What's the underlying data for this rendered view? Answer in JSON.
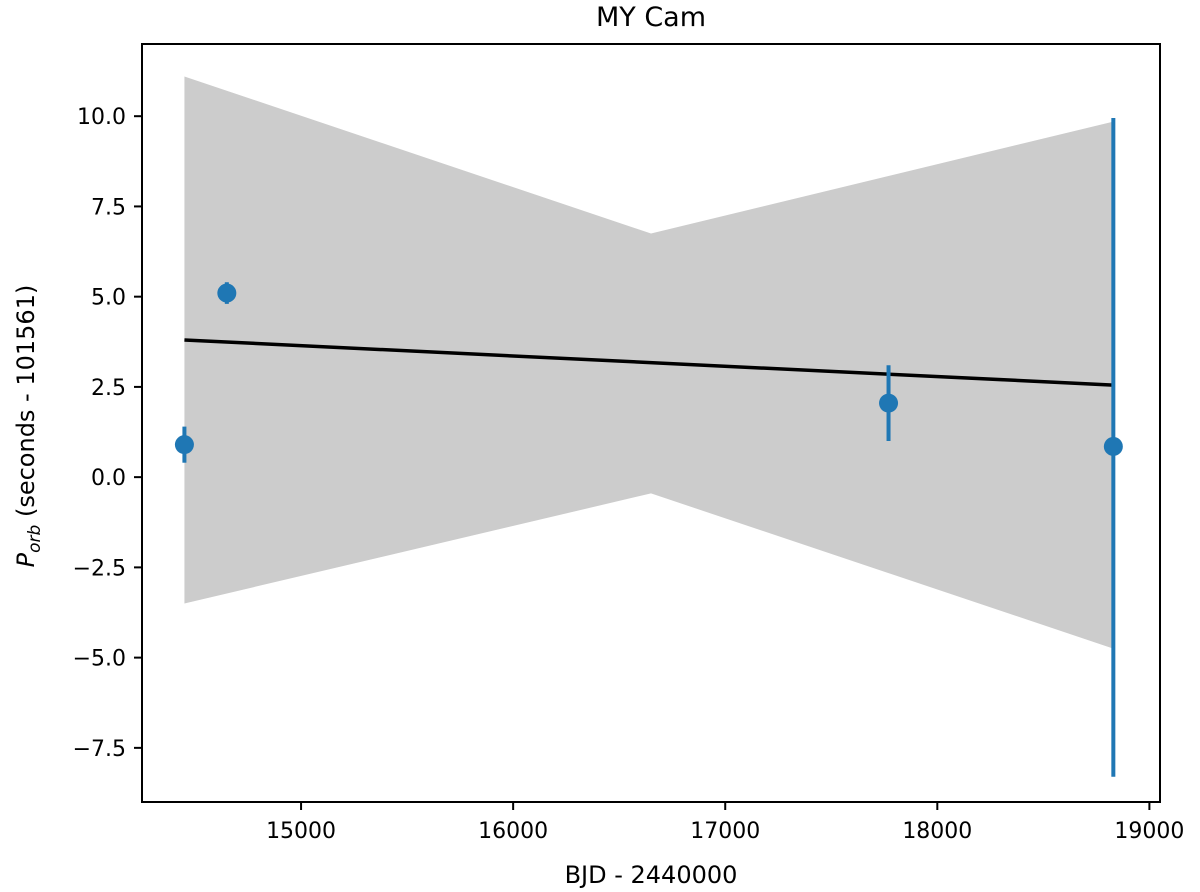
{
  "chart_data": {
    "type": "scatter",
    "title": "MY Cam",
    "xlabel": "BJD - 2440000",
    "ylabel": {
      "symbol": "P",
      "subscript": "orb",
      "rest": " (seconds - 101561)"
    },
    "xlim": [
      14250,
      19050
    ],
    "ylim": [
      -9.0,
      12.0
    ],
    "xticks": [
      {
        "value": 15000,
        "label": "15000"
      },
      {
        "value": 16000,
        "label": "16000"
      },
      {
        "value": 17000,
        "label": "17000"
      },
      {
        "value": 18000,
        "label": "18000"
      },
      {
        "value": 19000,
        "label": "19000"
      }
    ],
    "yticks": [
      {
        "value": 10.0,
        "label": "10.0"
      },
      {
        "value": 7.5,
        "label": "7.5"
      },
      {
        "value": 5.0,
        "label": "5.0"
      },
      {
        "value": 2.5,
        "label": "2.5"
      },
      {
        "value": 0.0,
        "label": "0.0"
      },
      {
        "value": -2.5,
        "label": "−2.5"
      },
      {
        "value": -5.0,
        "label": "−5.0"
      },
      {
        "value": -7.5,
        "label": "−7.5"
      }
    ],
    "grid": false,
    "points": [
      {
        "x": 14450,
        "y": 0.9,
        "yerr_low": 0.4,
        "yerr_high": 1.4
      },
      {
        "x": 14650,
        "y": 5.1,
        "yerr_low": 4.8,
        "yerr_high": 5.4
      },
      {
        "x": 17770,
        "y": 2.05,
        "yerr_low": 1.0,
        "yerr_high": 3.1
      },
      {
        "x": 18830,
        "y": 0.85,
        "yerr_low": -8.3,
        "yerr_high": 9.95
      }
    ],
    "fit_line": {
      "x": [
        14450,
        18830
      ],
      "y": [
        3.8,
        2.55
      ]
    },
    "confidence_band": {
      "x": [
        14450,
        16650,
        18830
      ],
      "upper": [
        11.1,
        6.75,
        9.85
      ],
      "lower": [
        -3.5,
        -0.45,
        -4.75
      ]
    },
    "colors": {
      "points": "#1f77b4",
      "fit_line": "#000000",
      "band": "#cccccc"
    }
  }
}
